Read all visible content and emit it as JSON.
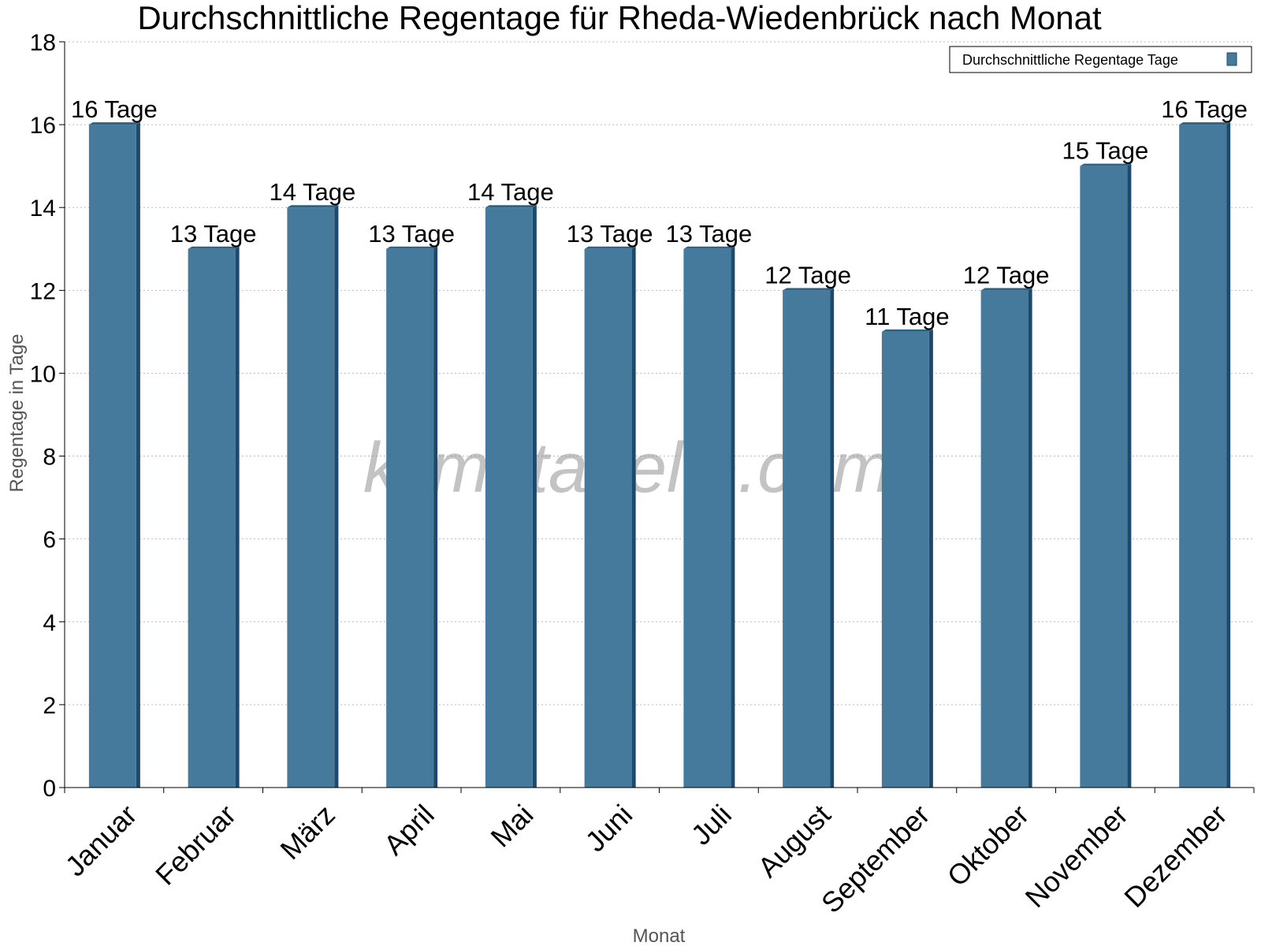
{
  "colors": {
    "bar_front": "#467a9c",
    "bar_side": "#1d4a6c",
    "bar_top": "#2e6182",
    "grid": "#bbbbbb"
  },
  "watermark": "klimatabelle.com",
  "chart_data": {
    "type": "bar",
    "title": "Durchschnittliche Regentage für Rheda-Wiedenbrück nach Monat",
    "xlabel": "Monat",
    "ylabel": "Regentage in Tage",
    "categories": [
      "Januar",
      "Februar",
      "März",
      "April",
      "Mai",
      "Juni",
      "Juli",
      "August",
      "September",
      "Oktober",
      "November",
      "Dezember"
    ],
    "series": [
      {
        "name": "Durchschnittliche Regentage Tage",
        "values": [
          16,
          13,
          14,
          13,
          14,
          13,
          13,
          12,
          11,
          12,
          15,
          16
        ],
        "labels": [
          "16 Tage",
          "13 Tage",
          "14 Tage",
          "13 Tage",
          "14 Tage",
          "13 Tage",
          "13 Tage",
          "12 Tage",
          "11 Tage",
          "12 Tage",
          "15 Tage",
          "16 Tage"
        ]
      }
    ],
    "ylim": [
      0,
      18
    ],
    "yticks": [
      0,
      2,
      4,
      6,
      8,
      10,
      12,
      14,
      16,
      18
    ],
    "grid": true,
    "legend_position": "top-right"
  }
}
